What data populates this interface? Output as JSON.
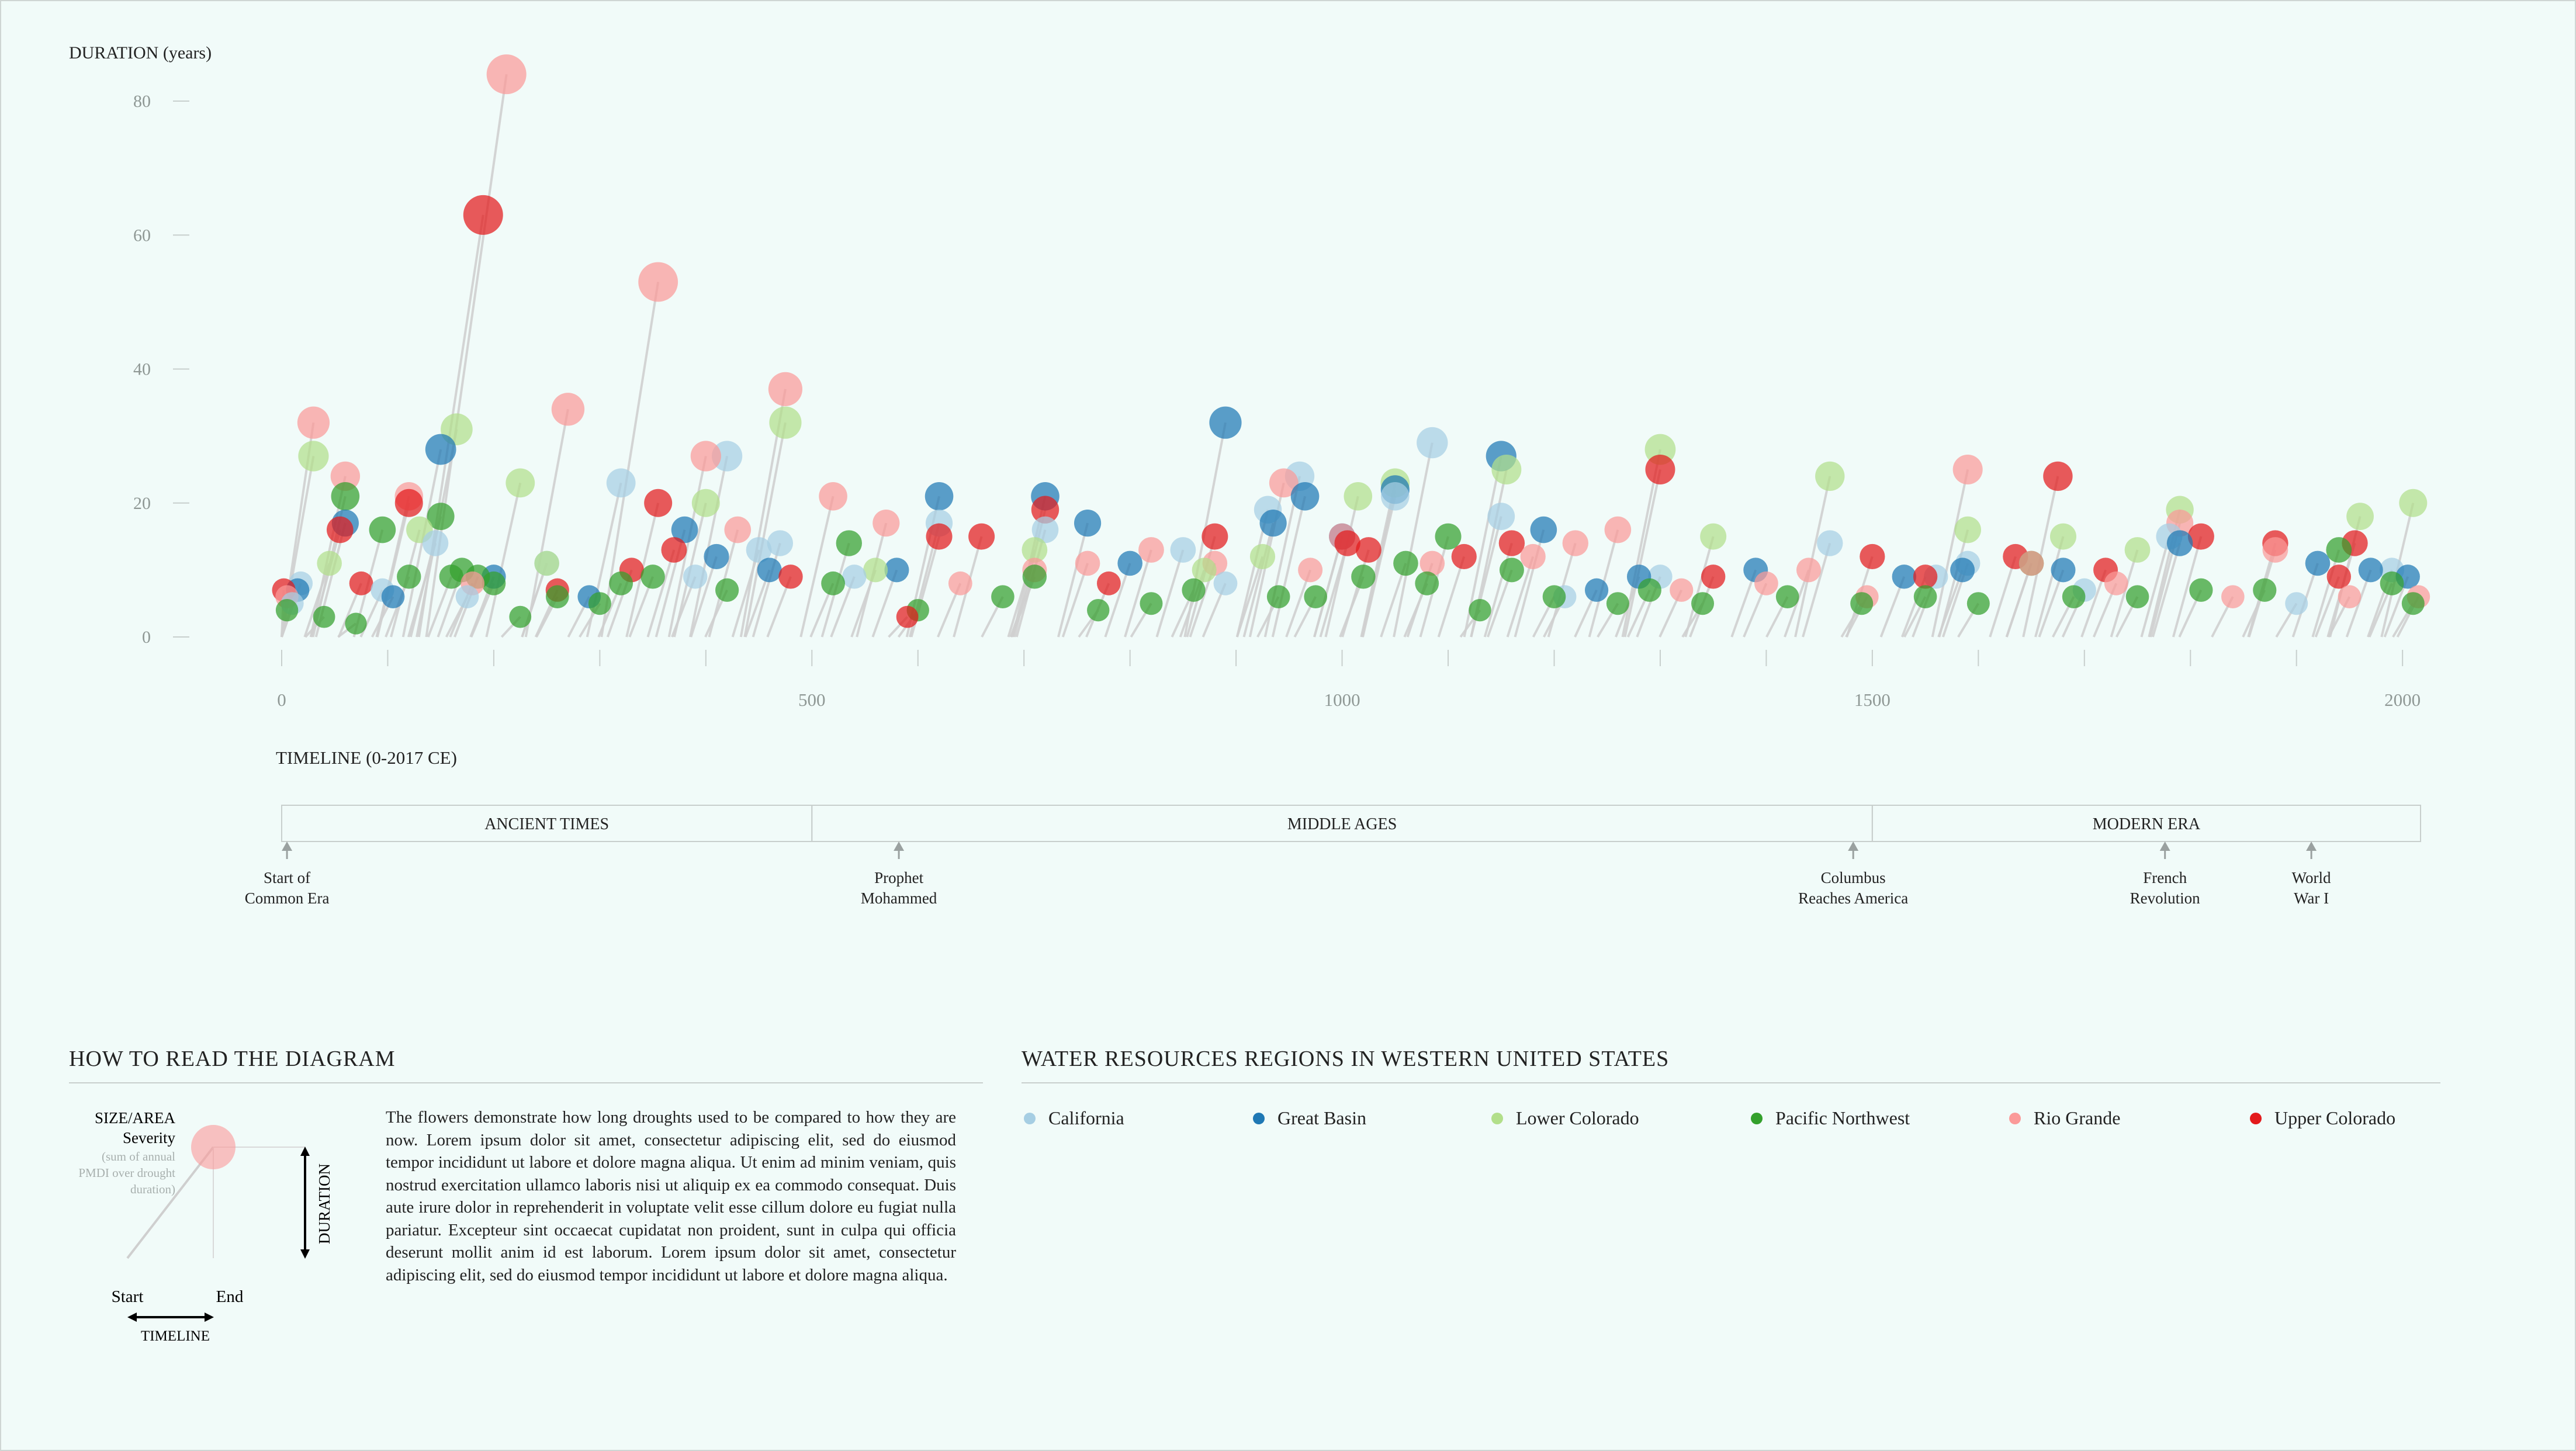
{
  "colors": {
    "California": "#a6cee3",
    "Great Basin": "#1f78b4",
    "Lower Colorado": "#b2df8a",
    "Pacific Northwest": "#33a02c",
    "Rio Grande": "#fb9a99",
    "Upper Colorado": "#e31a1c"
  },
  "chart_data": {
    "type": "scatter",
    "ylabel": "DURATION (years)",
    "xlabel": "TIMELINE (0-2017 CE)",
    "xlim": [
      0,
      2017
    ],
    "ylim": [
      0,
      85
    ],
    "y_ticks": [
      0,
      20,
      40,
      60,
      80
    ],
    "x_ticks": [
      0,
      500,
      1000,
      1500,
      2000
    ],
    "grid": false,
    "legend_title": "WATER RESOURCES REGIONS IN WESTERN UNITED STATES",
    "legend_placement": "bottom-right",
    "series": [
      {
        "name": "California",
        "points": [
          [
            10,
            5
          ],
          [
            18,
            8
          ],
          [
            95,
            7
          ],
          [
            145,
            14
          ],
          [
            175,
            6
          ],
          [
            250,
            11
          ],
          [
            320,
            23
          ],
          [
            390,
            9
          ],
          [
            420,
            27
          ],
          [
            450,
            13
          ],
          [
            470,
            14
          ],
          [
            540,
            9
          ],
          [
            620,
            17
          ],
          [
            720,
            16
          ],
          [
            850,
            13
          ],
          [
            890,
            8
          ],
          [
            930,
            19
          ],
          [
            960,
            24
          ],
          [
            1050,
            21
          ],
          [
            1085,
            29
          ],
          [
            1150,
            18
          ],
          [
            1210,
            6
          ],
          [
            1300,
            9
          ],
          [
            1460,
            14
          ],
          [
            1560,
            9
          ],
          [
            1590,
            11
          ],
          [
            1700,
            7
          ],
          [
            1780,
            15
          ],
          [
            1900,
            5
          ],
          [
            1990,
            10
          ]
        ]
      },
      {
        "name": "Great Basin",
        "points": [
          [
            15,
            7
          ],
          [
            60,
            17
          ],
          [
            105,
            6
          ],
          [
            150,
            28
          ],
          [
            200,
            9
          ],
          [
            290,
            6
          ],
          [
            380,
            16
          ],
          [
            410,
            12
          ],
          [
            460,
            10
          ],
          [
            580,
            10
          ],
          [
            620,
            21
          ],
          [
            720,
            21
          ],
          [
            760,
            17
          ],
          [
            800,
            11
          ],
          [
            890,
            32
          ],
          [
            935,
            17
          ],
          [
            965,
            21
          ],
          [
            1000,
            15
          ],
          [
            1050,
            22
          ],
          [
            1150,
            27
          ],
          [
            1190,
            16
          ],
          [
            1240,
            7
          ],
          [
            1280,
            9
          ],
          [
            1390,
            10
          ],
          [
            1530,
            9
          ],
          [
            1585,
            10
          ],
          [
            1680,
            10
          ],
          [
            1790,
            14
          ],
          [
            1920,
            11
          ],
          [
            1970,
            10
          ],
          [
            2005,
            9
          ]
        ]
      },
      {
        "name": "Lower Colorado",
        "points": [
          [
            30,
            27
          ],
          [
            45,
            11
          ],
          [
            130,
            16
          ],
          [
            165,
            31
          ],
          [
            225,
            23
          ],
          [
            250,
            11
          ],
          [
            400,
            20
          ],
          [
            475,
            32
          ],
          [
            560,
            10
          ],
          [
            710,
            13
          ],
          [
            870,
            10
          ],
          [
            925,
            12
          ],
          [
            1015,
            21
          ],
          [
            1050,
            23
          ],
          [
            1155,
            25
          ],
          [
            1300,
            28
          ],
          [
            1350,
            15
          ],
          [
            1460,
            24
          ],
          [
            1590,
            16
          ],
          [
            1680,
            15
          ],
          [
            1750,
            13
          ],
          [
            1790,
            19
          ],
          [
            1960,
            18
          ],
          [
            2010,
            20
          ]
        ]
      },
      {
        "name": "Pacific Northwest",
        "points": [
          [
            5,
            4
          ],
          [
            40,
            3
          ],
          [
            60,
            21
          ],
          [
            70,
            2
          ],
          [
            95,
            16
          ],
          [
            120,
            9
          ],
          [
            150,
            18
          ],
          [
            160,
            9
          ],
          [
            170,
            10
          ],
          [
            185,
            9
          ],
          [
            200,
            8
          ],
          [
            225,
            3
          ],
          [
            260,
            6
          ],
          [
            300,
            5
          ],
          [
            320,
            8
          ],
          [
            350,
            9
          ],
          [
            420,
            7
          ],
          [
            520,
            8
          ],
          [
            535,
            14
          ],
          [
            600,
            4
          ],
          [
            680,
            6
          ],
          [
            710,
            9
          ],
          [
            770,
            4
          ],
          [
            820,
            5
          ],
          [
            860,
            7
          ],
          [
            940,
            6
          ],
          [
            975,
            6
          ],
          [
            1020,
            9
          ],
          [
            1060,
            11
          ],
          [
            1080,
            8
          ],
          [
            1100,
            15
          ],
          [
            1130,
            4
          ],
          [
            1160,
            10
          ],
          [
            1200,
            6
          ],
          [
            1260,
            5
          ],
          [
            1290,
            7
          ],
          [
            1340,
            5
          ],
          [
            1420,
            6
          ],
          [
            1490,
            5
          ],
          [
            1550,
            6
          ],
          [
            1600,
            5
          ],
          [
            1650,
            11
          ],
          [
            1690,
            6
          ],
          [
            1750,
            6
          ],
          [
            1810,
            7
          ],
          [
            1870,
            7
          ],
          [
            1940,
            13
          ],
          [
            1990,
            8
          ],
          [
            2010,
            5
          ]
        ]
      },
      {
        "name": "Rio Grande",
        "points": [
          [
            5,
            6
          ],
          [
            30,
            32
          ],
          [
            60,
            24
          ],
          [
            120,
            21
          ],
          [
            180,
            8
          ],
          [
            212,
            84
          ],
          [
            270,
            34
          ],
          [
            355,
            53
          ],
          [
            400,
            27
          ],
          [
            430,
            16
          ],
          [
            475,
            37
          ],
          [
            520,
            21
          ],
          [
            570,
            17
          ],
          [
            640,
            8
          ],
          [
            710,
            10
          ],
          [
            760,
            11
          ],
          [
            820,
            13
          ],
          [
            880,
            11
          ],
          [
            945,
            23
          ],
          [
            970,
            10
          ],
          [
            1000,
            15
          ],
          [
            1085,
            11
          ],
          [
            1180,
            12
          ],
          [
            1220,
            14
          ],
          [
            1260,
            16
          ],
          [
            1320,
            7
          ],
          [
            1400,
            8
          ],
          [
            1440,
            10
          ],
          [
            1495,
            6
          ],
          [
            1590,
            25
          ],
          [
            1650,
            11
          ],
          [
            1730,
            8
          ],
          [
            1790,
            17
          ],
          [
            1840,
            6
          ],
          [
            1880,
            13
          ],
          [
            1950,
            6
          ],
          [
            2015,
            6
          ]
        ]
      },
      {
        "name": "Upper Colorado",
        "points": [
          [
            2,
            7
          ],
          [
            55,
            16
          ],
          [
            75,
            8
          ],
          [
            120,
            20
          ],
          [
            190,
            63
          ],
          [
            260,
            7
          ],
          [
            330,
            10
          ],
          [
            355,
            20
          ],
          [
            370,
            13
          ],
          [
            480,
            9
          ],
          [
            590,
            3
          ],
          [
            620,
            15
          ],
          [
            660,
            15
          ],
          [
            720,
            19
          ],
          [
            780,
            8
          ],
          [
            880,
            15
          ],
          [
            1005,
            14
          ],
          [
            1025,
            13
          ],
          [
            1115,
            12
          ],
          [
            1160,
            14
          ],
          [
            1300,
            25
          ],
          [
            1350,
            9
          ],
          [
            1500,
            12
          ],
          [
            1550,
            9
          ],
          [
            1635,
            12
          ],
          [
            1675,
            24
          ],
          [
            1720,
            10
          ],
          [
            1810,
            15
          ],
          [
            1880,
            14
          ],
          [
            1940,
            9
          ],
          [
            1955,
            14
          ]
        ]
      }
    ]
  },
  "eras": [
    {
      "label": "ANCIENT TIMES",
      "start": 0,
      "end": 500
    },
    {
      "label": "MIDDLE AGES",
      "start": 500,
      "end": 1500
    },
    {
      "label": "MODERN ERA",
      "start": 1500,
      "end": 2017
    }
  ],
  "events": [
    {
      "year": 5,
      "line1": "Start of",
      "line2": "Common Era"
    },
    {
      "year": 582,
      "line1": "Prophet",
      "line2": "Mohammed"
    },
    {
      "year": 1482,
      "line1": "Columbus",
      "line2": "Reaches America"
    },
    {
      "year": 1776,
      "line1": "French",
      "line2": "Revolution"
    },
    {
      "year": 1914,
      "line1": "World",
      "line2": "War I"
    }
  ],
  "how_to": {
    "title": "HOW TO READ THE DIAGRAM",
    "size_label": "SIZE/AREA",
    "severity_label": "Severity",
    "severity_note1": "(sum of annual",
    "severity_note2": "PMDI over drought",
    "severity_note3": "duration)",
    "duration_label": "DURATION",
    "start_label": "Start",
    "end_label": "End",
    "timeline_label": "TIMELINE",
    "description": "The flowers demonstrate how long droughts used to be compared to how they are now. Lorem ipsum dolor sit amet, consectetur adipiscing elit, sed do eiusmod tempor incididunt ut labore et dolore magna aliqua. Ut enim ad minim veniam, quis nostrud exercitation ullamco laboris nisi ut aliquip ex ea commodo consequat. Duis aute irure dolor in reprehenderit in voluptate velit esse cillum dolore eu fugiat nulla pariatur. Excepteur sint occaecat cupidatat non proident, sunt in culpa qui officia deserunt mollit anim id est laborum. Lorem ipsum dolor sit amet, consectetur adipiscing elit, sed do eiusmod tempor incididunt ut labore et dolore magna aliqua."
  },
  "legend": {
    "title": "WATER RESOURCES REGIONS IN WESTERN UNITED STATES",
    "items": [
      "California",
      "Great Basin",
      "Lower Colorado",
      "Pacific Northwest",
      "Rio Grande",
      "Upper Colorado"
    ]
  }
}
